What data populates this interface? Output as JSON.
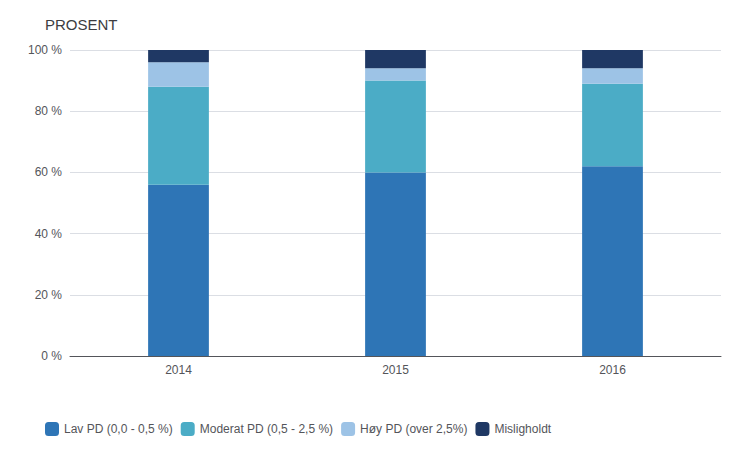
{
  "chart_data": {
    "type": "bar",
    "title": "PROSENT",
    "categories": [
      "2014",
      "2015",
      "2016"
    ],
    "series": [
      {
        "name": "Lav PD (0,0 - 0,5 %)",
        "color": "#2E75B6",
        "values": [
          56,
          60,
          62
        ]
      },
      {
        "name": "Moderat PD (0,5 - 2,5 %)",
        "color": "#4BACC6",
        "values": [
          32,
          30,
          27
        ]
      },
      {
        "name": "Høy PD (over 2,5%)",
        "color": "#9DC3E6",
        "values": [
          8,
          4,
          5
        ]
      },
      {
        "name": "Misligholdt",
        "color": "#1F3864",
        "values": [
          4,
          6,
          6
        ]
      }
    ],
    "stacked": true,
    "ylim": [
      0,
      100
    ],
    "yticks": [
      {
        "value": 0,
        "label": "0 %"
      },
      {
        "value": 20,
        "label": "20 %"
      },
      {
        "value": 40,
        "label": "40 %"
      },
      {
        "value": 60,
        "label": "60 %"
      },
      {
        "value": 80,
        "label": "80 %"
      },
      {
        "value": 100,
        "label": "100 %"
      }
    ],
    "grid": true,
    "legend": "bottom"
  }
}
